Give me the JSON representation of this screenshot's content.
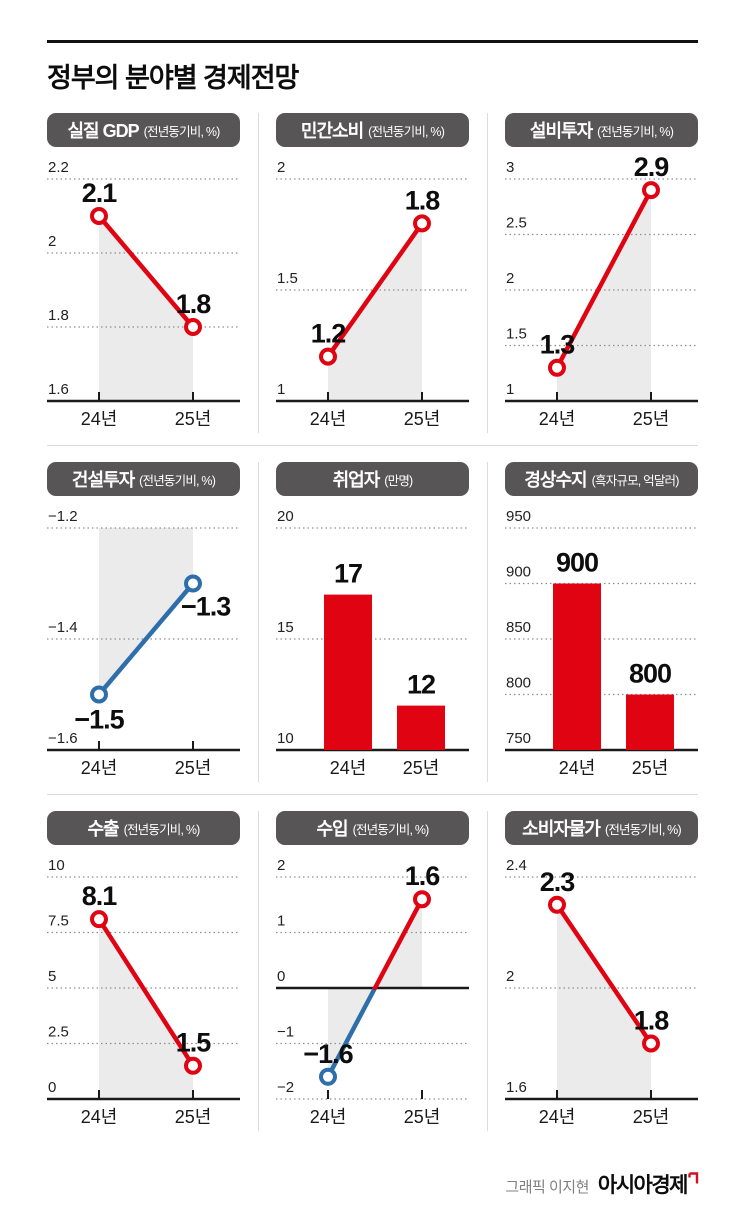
{
  "page": {
    "title": "정부의 분야별 경제전망",
    "credit": {
      "prefix": "그래픽 이지현",
      "brand": "아시아경제"
    }
  },
  "colors": {
    "red": "#e00413",
    "blue": "#2e6fab",
    "header_bg": "#585556",
    "shade": "#ebebeb",
    "grid_dotted": "#8f8f8f",
    "axis": "#1a1a1a",
    "separator": "#dcdcdc"
  },
  "chart_data": [
    {
      "id": "real-gdp",
      "type": "line",
      "title": "실질 GDP",
      "unit": "(전년동기비, %)",
      "categories": [
        "24년",
        "25년"
      ],
      "values": [
        2.1,
        1.8
      ],
      "value_labels": [
        "2.1",
        "1.8"
      ],
      "yticks": [
        2.2,
        2,
        1.8,
        1.6
      ],
      "ytick_labels": [
        "2.2",
        "2",
        "1.8",
        "1.6"
      ],
      "ylim": [
        1.6,
        2.2
      ],
      "zero_axis": false,
      "split_at_zero": false,
      "line_color": "red",
      "point_colors": [
        "red",
        "red"
      ],
      "label_pos": [
        "above",
        "above"
      ],
      "shade": true,
      "grid": "dotted",
      "legend": "none"
    },
    {
      "id": "private-consumption",
      "type": "line",
      "title": "민간소비",
      "unit": "(전년동기비, %)",
      "categories": [
        "24년",
        "25년"
      ],
      "values": [
        1.2,
        1.8
      ],
      "value_labels": [
        "1.2",
        "1.8"
      ],
      "yticks": [
        2,
        1.5,
        1
      ],
      "ytick_labels": [
        "2",
        "1.5",
        "1"
      ],
      "ylim": [
        1,
        2
      ],
      "zero_axis": false,
      "split_at_zero": false,
      "line_color": "red",
      "point_colors": [
        "red",
        "red"
      ],
      "label_pos": [
        "above",
        "above"
      ],
      "shade": true,
      "grid": "dotted",
      "legend": "none"
    },
    {
      "id": "facility-investment",
      "type": "line",
      "title": "설비투자",
      "unit": "(전년동기비, %)",
      "categories": [
        "24년",
        "25년"
      ],
      "values": [
        1.3,
        2.9
      ],
      "value_labels": [
        "1.3",
        "2.9"
      ],
      "yticks": [
        3,
        2.5,
        2,
        1.5,
        1
      ],
      "ytick_labels": [
        "3",
        "2.5",
        "2",
        "1.5",
        "1"
      ],
      "ylim": [
        1,
        3
      ],
      "zero_axis": false,
      "split_at_zero": false,
      "line_color": "red",
      "point_colors": [
        "red",
        "red"
      ],
      "label_pos": [
        "above",
        "above"
      ],
      "shade": true,
      "grid": "dotted",
      "legend": "none"
    },
    {
      "id": "construction-investment",
      "type": "line",
      "title": "건설투자",
      "unit": "(전년동기비, %)",
      "categories": [
        "24년",
        "25년"
      ],
      "values": [
        -1.5,
        -1.3
      ],
      "value_labels": [
        "−1.5",
        "−1.3"
      ],
      "yticks": [
        -1.2,
        -1.4,
        -1.6
      ],
      "ytick_labels": [
        "−1.2",
        "−1.4",
        "−1.6"
      ],
      "ylim": [
        -1.6,
        -1.2
      ],
      "zero_axis": false,
      "split_at_zero": false,
      "line_color": "blue",
      "point_colors": [
        "blue",
        "blue"
      ],
      "label_pos": [
        "below",
        "below-right"
      ],
      "shade": true,
      "grid": "dotted",
      "legend": "none"
    },
    {
      "id": "employed-persons",
      "type": "bar",
      "title": "취업자",
      "unit": "(만명)",
      "categories": [
        "24년",
        "25년"
      ],
      "values": [
        17,
        12
      ],
      "value_labels": [
        "17",
        "12"
      ],
      "yticks": [
        20,
        15,
        10
      ],
      "ytick_labels": [
        "20",
        "15",
        "10"
      ],
      "ylim": [
        10,
        20
      ],
      "zero_axis": false,
      "split_at_zero": false,
      "bar_color": "red",
      "label_pos": [
        "above",
        "above"
      ],
      "shade": false,
      "grid": "dotted",
      "legend": "none"
    },
    {
      "id": "current-account",
      "type": "bar",
      "title": "경상수지",
      "unit": "(흑자규모, 억달러)",
      "categories": [
        "24년",
        "25년"
      ],
      "values": [
        900,
        800
      ],
      "value_labels": [
        "900",
        "800"
      ],
      "yticks": [
        950,
        900,
        850,
        800,
        750
      ],
      "ytick_labels": [
        "950",
        "900",
        "850",
        "800",
        "750"
      ],
      "ylim": [
        750,
        950
      ],
      "zero_axis": false,
      "split_at_zero": false,
      "bar_color": "red",
      "label_pos": [
        "above",
        "above"
      ],
      "shade": false,
      "grid": "dotted",
      "legend": "none"
    },
    {
      "id": "exports",
      "type": "line",
      "title": "수출",
      "unit": "(전년동기비, %)",
      "categories": [
        "24년",
        "25년"
      ],
      "values": [
        8.1,
        1.5
      ],
      "value_labels": [
        "8.1",
        "1.5"
      ],
      "yticks": [
        10,
        7.5,
        5,
        2.5,
        0
      ],
      "ytick_labels": [
        "10",
        "7.5",
        "5",
        "2.5",
        "0"
      ],
      "ylim": [
        0,
        10
      ],
      "zero_axis": false,
      "split_at_zero": false,
      "line_color": "red",
      "point_colors": [
        "red",
        "red"
      ],
      "label_pos": [
        "above",
        "above"
      ],
      "shade": true,
      "grid": "dotted",
      "legend": "none"
    },
    {
      "id": "imports",
      "type": "line",
      "title": "수입",
      "unit": "(전년동기비, %)",
      "categories": [
        "24년",
        "25년"
      ],
      "values": [
        -1.6,
        1.6
      ],
      "value_labels": [
        "−1.6",
        "1.6"
      ],
      "yticks": [
        2,
        1,
        0,
        -1,
        -2
      ],
      "ytick_labels": [
        "2",
        "1",
        "0",
        "−1",
        "−2"
      ],
      "ylim": [
        -2,
        2
      ],
      "zero_axis": true,
      "split_at_zero": true,
      "line_color": "red",
      "point_colors": [
        "blue",
        "red"
      ],
      "label_pos": [
        "above",
        "above"
      ],
      "shade": true,
      "grid": "dotted",
      "legend": "none"
    },
    {
      "id": "consumer-prices",
      "type": "line",
      "title": "소비자물가",
      "unit": "(전년동기비, %)",
      "categories": [
        "24년",
        "25년"
      ],
      "values": [
        2.3,
        1.8
      ],
      "value_labels": [
        "2.3",
        "1.8"
      ],
      "yticks": [
        2.4,
        2,
        1.6
      ],
      "ytick_labels": [
        "2.4",
        "2",
        "1.6"
      ],
      "ylim": [
        1.6,
        2.4
      ],
      "zero_axis": false,
      "split_at_zero": false,
      "line_color": "red",
      "point_colors": [
        "red",
        "red"
      ],
      "label_pos": [
        "above",
        "above"
      ],
      "shade": true,
      "grid": "dotted",
      "legend": "none"
    }
  ]
}
